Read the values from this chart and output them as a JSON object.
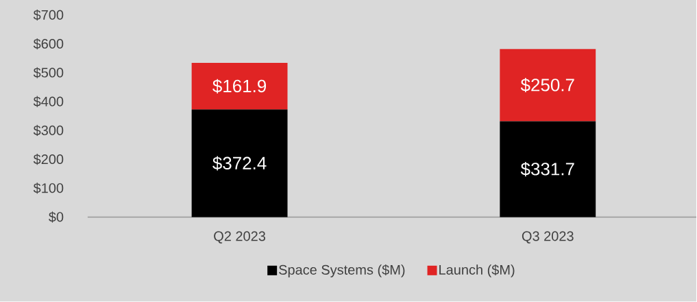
{
  "chart_data": {
    "type": "bar",
    "stacked": true,
    "categories": [
      "Q2 2023",
      "Q3 2023"
    ],
    "series": [
      {
        "name": "Space Systems ($M)",
        "color": "#000000",
        "values": [
          372.4,
          331.7
        ],
        "value_labels": [
          "$372.4",
          "$331.7"
        ]
      },
      {
        "name": "Launch ($M)",
        "color": "#e02424",
        "values": [
          161.9,
          250.7
        ],
        "value_labels": [
          "$161.9",
          "$250.7"
        ]
      }
    ],
    "ylim": [
      0,
      700
    ],
    "yticks": [
      {
        "value": 0,
        "label": "$0"
      },
      {
        "value": 100,
        "label": "$100"
      },
      {
        "value": 200,
        "label": "$200"
      },
      {
        "value": 300,
        "label": "$300"
      },
      {
        "value": 400,
        "label": "$400"
      },
      {
        "value": 500,
        "label": "$500"
      },
      {
        "value": 600,
        "label": "$600"
      },
      {
        "value": 700,
        "label": "$700"
      }
    ],
    "grid": false,
    "legend": "bottom"
  }
}
